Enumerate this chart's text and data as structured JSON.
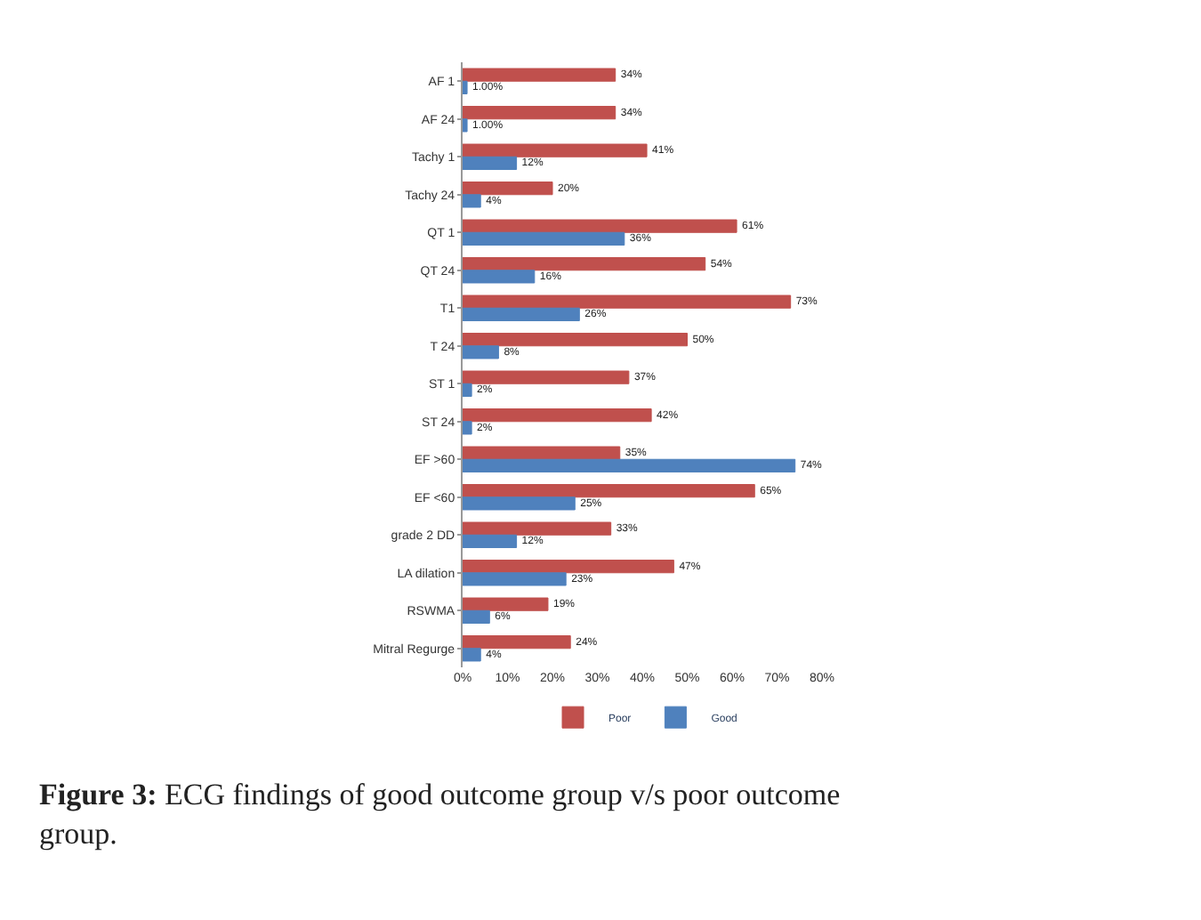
{
  "chart_data": {
    "type": "bar",
    "orientation": "horizontal",
    "categories": [
      "AF 1",
      "AF 24",
      "Tachy 1",
      "Tachy 24",
      "QT 1",
      "QT 24",
      "T1",
      "T 24",
      "ST 1",
      "ST 24",
      "EF >60",
      "EF <60",
      "grade 2 DD",
      "LA dilation",
      "RSWMA",
      "Mitral Regurge"
    ],
    "series": [
      {
        "name": "Poor",
        "color": "#c0504d",
        "values": [
          34,
          34,
          41,
          20,
          61,
          54,
          73,
          50,
          37,
          42,
          35,
          65,
          33,
          47,
          19,
          24
        ],
        "value_labels": [
          "34%",
          "34%",
          "41%",
          "20%",
          "61%",
          "54%",
          "73%",
          "50%",
          "37%",
          "42%",
          "35%",
          "65%",
          "33%",
          "47%",
          "19%",
          "24%"
        ]
      },
      {
        "name": "Good",
        "color": "#4f81bd",
        "values": [
          1,
          1,
          12,
          4,
          36,
          16,
          26,
          8,
          2,
          2,
          74,
          25,
          12,
          23,
          6,
          4
        ],
        "value_labels": [
          "1.00%",
          "1.00%",
          "12%",
          "4%",
          "36%",
          "16%",
          "26%",
          "8%",
          "2%",
          "2%",
          "74%",
          "25%",
          "12%",
          "23%",
          "6%",
          "4%"
        ]
      }
    ],
    "xlim": [
      0,
      80
    ],
    "xticks": [
      {
        "value": 0,
        "label": "0%"
      },
      {
        "value": 10,
        "label": "10%"
      },
      {
        "value": 20,
        "label": "20%"
      },
      {
        "value": 30,
        "label": "30%"
      },
      {
        "value": 40,
        "label": "40%"
      },
      {
        "value": 50,
        "label": "50%"
      },
      {
        "value": 60,
        "label": "60%"
      },
      {
        "value": 70,
        "label": "70%"
      },
      {
        "value": 80,
        "label": "80%"
      }
    ],
    "legend": "bottom",
    "annotations": [
      "Figure 3: ECG findings of good outcome group v/s poor outcome group."
    ]
  }
}
